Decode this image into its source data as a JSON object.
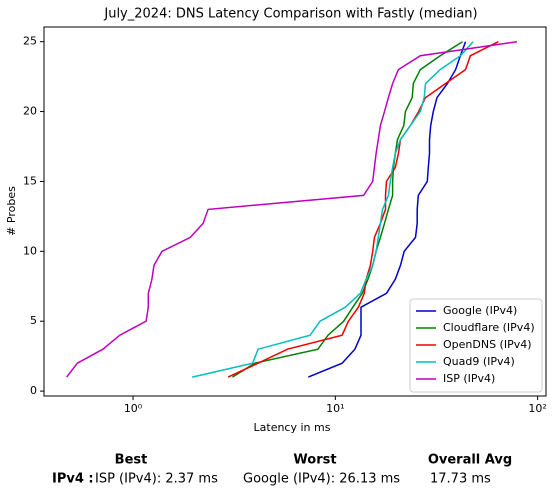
{
  "chart_data": {
    "type": "line",
    "title": "July_2024: DNS Latency Comparison with Fastly (median)",
    "x_label": "Latency in ms",
    "y_label": "# Probes",
    "x_scale": "log",
    "xlim": [
      0.363,
      110
    ],
    "ylim": [
      -0.35,
      26.05
    ],
    "xticks": [
      {
        "value": 1,
        "label": "10⁰"
      },
      {
        "value": 10,
        "label": "10¹"
      },
      {
        "value": 100,
        "label": "10²"
      }
    ],
    "yticks": [
      0,
      5,
      10,
      15,
      20,
      25
    ],
    "legend": "lower right",
    "series": [
      {
        "name": "Google (IPv4)",
        "color": "#0000cc",
        "x": [
          7.35,
          10.8,
          12.5,
          13.4,
          13.4,
          13.4,
          17.9,
          19.8,
          21,
          21.9,
          24.9,
          25.4,
          25.4,
          25.7,
          28.5,
          28.8,
          29.2,
          29.2,
          29.6,
          30.5,
          31.8,
          35.8,
          39.3,
          41.5,
          44
        ],
        "values": [
          1,
          2,
          3,
          4,
          5,
          6,
          7,
          8,
          9,
          10,
          11,
          12,
          13,
          14,
          15,
          16,
          17,
          18,
          19,
          20,
          21,
          22,
          23,
          24,
          25
        ]
      },
      {
        "name": "Cloudflare (IPv4)",
        "color": "#008000",
        "x": [
          3.1,
          4.0,
          8.2,
          9.2,
          11,
          12.2,
          13.6,
          14.5,
          15.3,
          15.9,
          16.7,
          17.5,
          18.3,
          19.2,
          19.2,
          19.4,
          19.8,
          20.3,
          21.8,
          22.2,
          24,
          24.3,
          26.3,
          33,
          42.5
        ],
        "values": [
          1,
          2,
          3,
          4,
          5,
          6,
          7,
          8,
          9,
          10,
          11,
          12,
          13,
          14,
          15,
          16,
          17,
          18,
          19,
          20,
          21,
          22,
          23,
          24,
          25
        ]
      },
      {
        "name": "OpenDNS (IPv4)",
        "color": "#ee0000",
        "x": [
          2.95,
          4.15,
          5.8,
          10.8,
          11.6,
          13,
          13.9,
          14.2,
          14.9,
          15.3,
          15.6,
          16.7,
          17.7,
          17.7,
          17.9,
          19.8,
          20.5,
          21,
          23.5,
          25.8,
          27.9,
          35,
          44,
          46.5,
          64
        ],
        "values": [
          1,
          2,
          3,
          4,
          5,
          6,
          7,
          8,
          9,
          10,
          11,
          12,
          13,
          14,
          15,
          16,
          17,
          18,
          19,
          20,
          21,
          22,
          23,
          24,
          25
        ]
      },
      {
        "name": "Quad9 (IPv4)",
        "color": "#00bfbf",
        "x": [
          1.96,
          3.9,
          4.15,
          7.5,
          8.4,
          11.2,
          13.3,
          14.2,
          15.3,
          15.9,
          16.3,
          16.7,
          17.1,
          18.3,
          18.7,
          19.2,
          19.8,
          21,
          23.5,
          26.3,
          27.5,
          27.9,
          33,
          41.5,
          48
        ],
        "values": [
          1,
          2,
          3,
          4,
          5,
          6,
          7,
          8,
          9,
          10,
          11,
          12,
          13,
          14,
          15,
          16,
          17,
          18,
          19,
          20,
          21,
          22,
          23,
          24,
          25
        ]
      },
      {
        "name": "ISP (IPv4)",
        "color": "#bf00bf",
        "x": [
          0.47,
          0.53,
          0.71,
          0.86,
          1.16,
          1.19,
          1.19,
          1.24,
          1.27,
          1.39,
          1.92,
          2.22,
          2.35,
          13.8,
          15.3,
          15.6,
          15.9,
          16.3,
          16.7,
          17.5,
          18.3,
          19.2,
          20.5,
          26.3,
          79
        ],
        "values": [
          1,
          2,
          3,
          4,
          5,
          6,
          7,
          8,
          9,
          10,
          11,
          12,
          13,
          14,
          15,
          16,
          17,
          18,
          19,
          20,
          21,
          22,
          23,
          24,
          25
        ]
      }
    ]
  },
  "summary": {
    "headers": [
      "Best",
      "Worst",
      "Overall Avg"
    ],
    "row_label": "IPv4 :",
    "best": "ISP (IPv4): 2.37 ms",
    "worst": "Google (IPv4): 26.13 ms",
    "avg": "17.73 ms"
  }
}
